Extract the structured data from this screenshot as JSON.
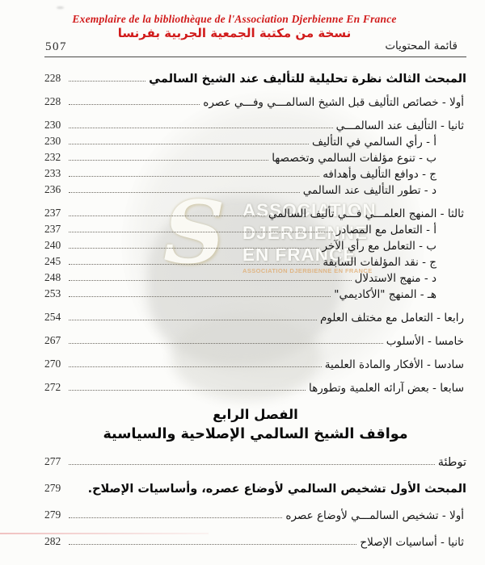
{
  "stamp": {
    "french": "Exemplaire de la bibliothèque de l'Association Djerbienne En France",
    "arabic": "نسخة من مكتبة الجمعية الجربية بفرنسا",
    "color": "#d11b1b"
  },
  "masthead": {
    "page_number": "507",
    "title": "قائمة المحتويات"
  },
  "watermark": {
    "monogram": "S",
    "line1": "ASSOCIATION",
    "line2": "DJERBIENNE",
    "line3": "EN FRANCE",
    "small_line": "ASSOCIATION DJERBIENNE EN FRANCE"
  },
  "chapter": {
    "title": "الفصل الرابع",
    "subtitle": "مواقف الشيخ السالمي الإصلاحية والسياسية"
  },
  "toc": {
    "top": [
      {
        "label": "المبحث الثالث نظرة تحليلية للتأليف عند الشيخ السالمي",
        "page": "228",
        "level": 0,
        "bold": true,
        "leader": true
      },
      {
        "label": "أولا - خصائص التأليف قبل الشيخ السالمـــي وفـــي عصره",
        "page": "228",
        "level": 1,
        "bold": false,
        "leader": true
      },
      {
        "label": "ثانيا - التأليف عند السالمـــي",
        "page": "230",
        "level": 1,
        "bold": false,
        "leader": true
      },
      {
        "label": "أ - رأي السالمي في التأليف",
        "page": "230",
        "level": 2,
        "bold": false,
        "leader": true
      },
      {
        "label": "ب - تنوع مؤلفات السالمي وتخصصها",
        "page": "232",
        "level": 2,
        "bold": false,
        "leader": true
      },
      {
        "label": "ج - دوافع التأليف وأهدافه",
        "page": "233",
        "level": 2,
        "bold": false,
        "leader": true
      },
      {
        "label": "د - تطور التأليف عند السالمي",
        "page": "236",
        "level": 2,
        "bold": false,
        "leader": true
      },
      {
        "label": "ثالثا - المنهج العلمـــي فـــي تأليف السالمي",
        "page": "237",
        "level": 1,
        "bold": false,
        "leader": true
      },
      {
        "label": "أ - التعامل مع المصادر",
        "page": "237",
        "level": 2,
        "bold": false,
        "leader": true
      },
      {
        "label": "ب - التعامل مع رأي الآخر",
        "page": "240",
        "level": 2,
        "bold": false,
        "leader": true
      },
      {
        "label": "ج - نقد المؤلفات السابقة",
        "page": "245",
        "level": 2,
        "bold": false,
        "leader": true
      },
      {
        "label": "د - منهج الاستدلال",
        "page": "248",
        "level": 2,
        "bold": false,
        "leader": true
      },
      {
        "label": "هـ - المنهج \"الأكاديمي\"",
        "page": "253",
        "level": 2,
        "bold": false,
        "leader": true
      },
      {
        "label": "رابعا - التعامل مع مختلف العلوم",
        "page": "254",
        "level": 1,
        "bold": false,
        "leader": true
      },
      {
        "label": "خامسا - الأسلوب",
        "page": "267",
        "level": 1,
        "bold": false,
        "leader": true
      },
      {
        "label": "سادسا - الأفكار والمادة العلمية",
        "page": "270",
        "level": 1,
        "bold": false,
        "leader": true
      },
      {
        "label": "سابعا - بعض آرائه العلمية وتطورها",
        "page": "272",
        "level": 1,
        "bold": false,
        "leader": true
      }
    ],
    "bottom": [
      {
        "label": "توطئة",
        "page": "277",
        "level": 0,
        "bold": false,
        "leader": true
      },
      {
        "label": "المبحث الأول تشخيص السالمي لأوضاع عصره، وأساسيات الإصلاح.",
        "page": "279",
        "level": 0,
        "bold": true,
        "leader": false
      },
      {
        "label": "أولا - تشخيص السالمـــي لأوضاع عصره",
        "page": "279",
        "level": 1,
        "bold": false,
        "leader": true
      },
      {
        "label": "ثانيا - أساسيات الإصلاح",
        "page": "282",
        "level": 1,
        "bold": false,
        "leader": true
      }
    ]
  }
}
